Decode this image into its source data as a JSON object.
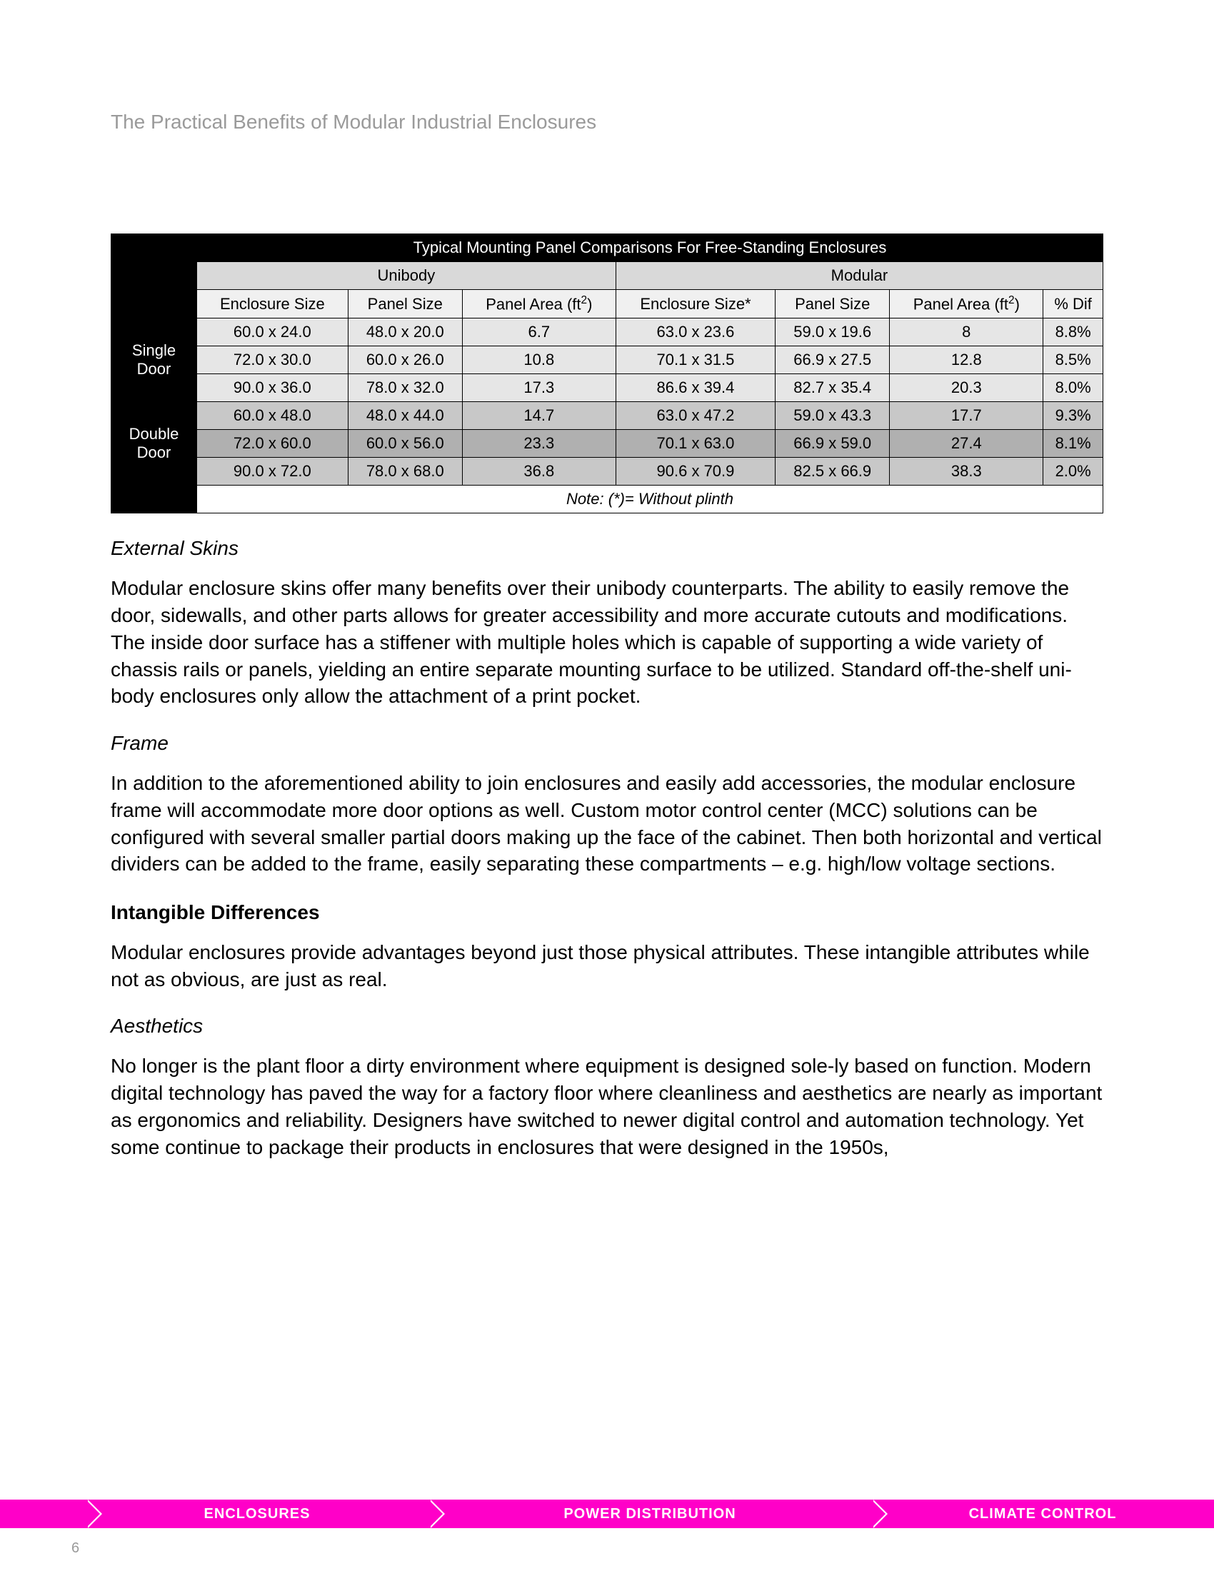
{
  "header": {
    "title": "The Practical Benefits of Modular Industrial Enclosures"
  },
  "table": {
    "title": "Typical Mounting Panel Comparisons For Free-Standing Enclosures",
    "group_headers": {
      "unibody": "Unibody",
      "modular": "Modular"
    },
    "col_headers": {
      "enc_size": "Enclosure Size",
      "panel_size": "Panel Size",
      "panel_area_pre": "Panel Area (ft",
      "panel_area_post": ")",
      "enc_size_star": "Enclosure Size*",
      "panel_area2_pre": "Panel Area (ft",
      "panel_area2_post": ")",
      "pct_dif": "% Dif"
    },
    "row_labels": {
      "single": "Single Door",
      "double": "Double Door"
    },
    "rows": {
      "r1": {
        "es": "60.0 x 24.0",
        "ps": "48.0 x 20.0",
        "pa": "6.7",
        "es2": "63.0 x 23.6",
        "ps2": "59.0 x 19.6",
        "pa2": "8",
        "pd": "8.8%"
      },
      "r2": {
        "es": "72.0 x 30.0",
        "ps": "60.0 x 26.0",
        "pa": "10.8",
        "es2": "70.1 x 31.5",
        "ps2": "66.9 x 27.5",
        "pa2": "12.8",
        "pd": "8.5%"
      },
      "r3": {
        "es": "90.0 x 36.0",
        "ps": "78.0 x 32.0",
        "pa": "17.3",
        "es2": "86.6 x 39.4",
        "ps2": "82.7 x 35.4",
        "pa2": "20.3",
        "pd": "8.0%"
      },
      "r4": {
        "es": "60.0 x 48.0",
        "ps": "48.0 x 44.0",
        "pa": "14.7",
        "es2": "63.0 x 47.2",
        "ps2": "59.0 x 43.3",
        "pa2": "17.7",
        "pd": "9.3%"
      },
      "r5": {
        "es": "72.0 x 60.0",
        "ps": "60.0 x 56.0",
        "pa": "23.3",
        "es2": "70.1 x 63.0",
        "ps2": "66.9 x 59.0",
        "pa2": "27.4",
        "pd": "8.1%"
      },
      "r6": {
        "es": "90.0 x 72.0",
        "ps": "78.0 x 68.0",
        "pa": "36.8",
        "es2": "90.6 x 70.9",
        "ps2": "82.5 x 66.9",
        "pa2": "38.3",
        "pd": "2.0%"
      }
    },
    "note": "Note: (*)= Without plinth"
  },
  "sections": {
    "external_skins": {
      "title": "External Skins",
      "body": "Modular enclosure skins offer many benefits over their unibody counterparts. The ability to easily remove the door, sidewalls, and other parts allows for greater accessibility and more accurate cutouts and modifications. The inside door surface has a stiffener with multiple holes which is capable of supporting a wide variety of chassis rails or panels, yielding an entire separate mounting surface to be utilized. Standard off-the-shelf uni-body enclosures only allow the attachment of a print pocket."
    },
    "frame": {
      "title": "Frame",
      "body": "In addition to the aforementioned ability to join enclosures and easily add accessories, the modular enclosure frame will accommodate more door options as well. Custom motor control center (MCC) solutions can be configured with several smaller partial doors making up the face of the cabinet. Then both horizontal and vertical dividers can be added to the frame, easily separating these compartments – e.g. high/low voltage sections."
    },
    "intangible": {
      "title": "Intangible Differences",
      "body": "Modular enclosures provide advantages beyond just those physical attributes. These intangible attributes while not as obvious, are just as real."
    },
    "aesthetics": {
      "title": "Aesthetics",
      "body": "No longer is the plant floor a dirty environment where equipment is designed sole-ly based on function. Modern digital technology has paved the way for a factory floor where cleanliness and aesthetics are nearly as important as ergonomics and reliability. Designers have switched to newer digital control and automation technology. Yet some continue to package their products in enclosures that were designed in the 1950s,"
    }
  },
  "footer": {
    "enclosures": "ENCLOSURES",
    "power": "POWER DISTRIBUTION",
    "climate": "CLIMATE CONTROL",
    "page_num": "6"
  }
}
